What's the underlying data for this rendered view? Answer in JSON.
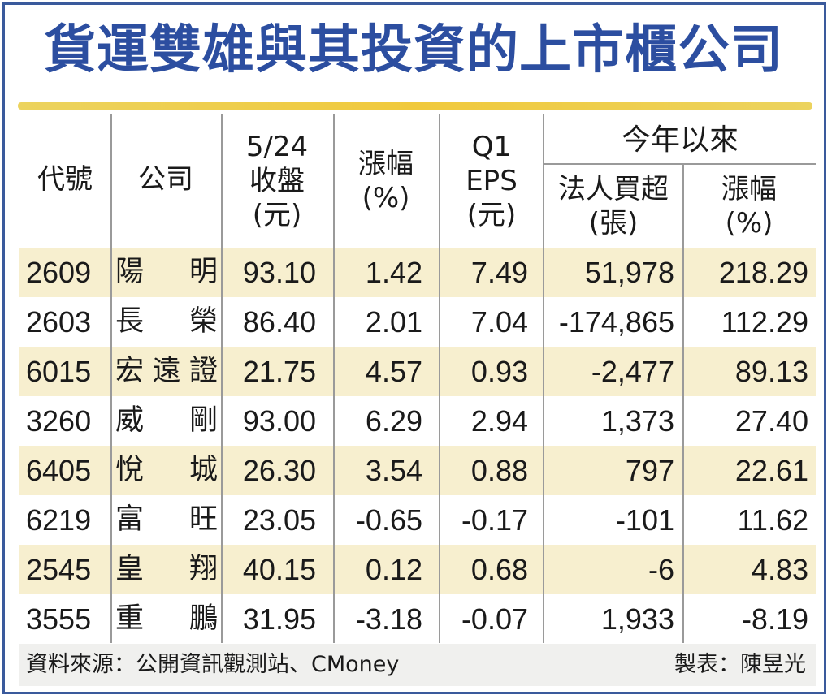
{
  "title": "貨運雙雄與其投資的上市櫃公司",
  "headers": {
    "code": "代號",
    "company": "公司",
    "close_line1": "5/24",
    "close_line2": "收盤",
    "close_line3": "(元)",
    "change_line1": "漲幅",
    "change_line2": "(%)",
    "eps_line1": "Q1",
    "eps_line2": "EPS",
    "eps_line3": "(元)",
    "ytd_group": "今年以來",
    "inst_line1": "法人買超",
    "inst_line2": "(張)",
    "ytd_change_line1": "漲幅",
    "ytd_change_line2": "(%)"
  },
  "rows": [
    {
      "code": "2609",
      "name": "陽明",
      "close": "93.10",
      "change": "1.42",
      "eps": "7.49",
      "inst": "51,978",
      "ytd": "218.29"
    },
    {
      "code": "2603",
      "name": "長榮",
      "close": "86.40",
      "change": "2.01",
      "eps": "7.04",
      "inst": "-174,865",
      "ytd": "112.29"
    },
    {
      "code": "6015",
      "name": "宏遠證",
      "close": "21.75",
      "change": "4.57",
      "eps": "0.93",
      "inst": "-2,477",
      "ytd": "89.13"
    },
    {
      "code": "3260",
      "name": "威剛",
      "close": "93.00",
      "change": "6.29",
      "eps": "2.94",
      "inst": "1,373",
      "ytd": "27.40"
    },
    {
      "code": "6405",
      "name": "悅城",
      "close": "26.30",
      "change": "3.54",
      "eps": "0.88",
      "inst": "797",
      "ytd": "22.61"
    },
    {
      "code": "6219",
      "name": "富旺",
      "close": "23.05",
      "change": "-0.65",
      "eps": "-0.17",
      "inst": "-101",
      "ytd": "11.62"
    },
    {
      "code": "2545",
      "name": "皇翔",
      "close": "40.15",
      "change": "0.12",
      "eps": "0.68",
      "inst": "-6",
      "ytd": "4.83"
    },
    {
      "code": "3555",
      "name": "重鵬",
      "close": "31.95",
      "change": "-3.18",
      "eps": "-0.07",
      "inst": "1,933",
      "ytd": "-8.19"
    }
  ],
  "footer": {
    "source": "資料來源：公開資訊觀測站、CMoney",
    "credit": "製表：陳昱光"
  },
  "colors": {
    "title": "#2c4ea0",
    "border": "#3a5a9c",
    "rule": "#f0c93c",
    "row_shade": "#f7efcf",
    "footer_bg": "#f0f0ee"
  }
}
